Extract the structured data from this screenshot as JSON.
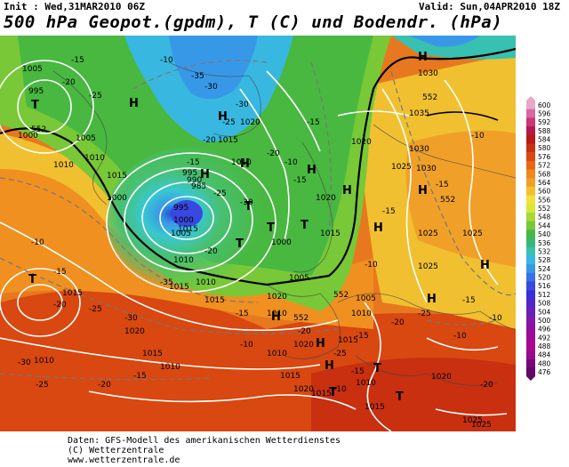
{
  "header": {
    "init": "Init : Wed,31MAR2010 06Z",
    "valid": "Valid: Sun,04APR2010 18Z",
    "title": "500 hPa Geopot.(gpdm), T (C) und Bodendr. (hPa)"
  },
  "footer": {
    "line1": "Daten: GFS-Modell des amerikanischen Wetterdienstes",
    "line2": "(C) Wetterzentrale",
    "line3": "www.wetterzentrale.de"
  },
  "legend": {
    "values": [
      "600",
      "596",
      "592",
      "588",
      "584",
      "580",
      "576",
      "572",
      "568",
      "564",
      "560",
      "556",
      "552",
      "548",
      "544",
      "540",
      "536",
      "532",
      "528",
      "524",
      "520",
      "516",
      "512",
      "508",
      "504",
      "500",
      "496",
      "492",
      "488",
      "484",
      "480",
      "476"
    ],
    "colors": [
      "#e8a8c8",
      "#d868a8",
      "#c83878",
      "#b81848",
      "#b81818",
      "#c83010",
      "#d84810",
      "#e86818",
      "#f08820",
      "#f0a028",
      "#f0c030",
      "#f0e040",
      "#d8e838",
      "#a8d838",
      "#78c838",
      "#48b840",
      "#38b878",
      "#38c0b0",
      "#38b8e0",
      "#3898e8",
      "#3870e8",
      "#3848e0",
      "#3830d8",
      "#5028c8",
      "#6820b8",
      "#8018a8",
      "#9010a0",
      "#a00898",
      "#a80890",
      "#980888",
      "#780878",
      "#600868"
    ]
  },
  "map_labels": {
    "pressure": [
      "1005",
      "995",
      "1000",
      "1005",
      "1010",
      "1015",
      "1010",
      "1000",
      "995",
      "990",
      "985",
      "995",
      "1000",
      "1005",
      "1010",
      "1015",
      "1005",
      "1010",
      "1000",
      "1015",
      "1020",
      "1025",
      "1030",
      "1035",
      "1030",
      "1025",
      "1025",
      "1020",
      "1015",
      "1010",
      "1005",
      "1010",
      "1015",
      "1020",
      "1015",
      "1010",
      "1010",
      "1015",
      "1020",
      "1015",
      "1010",
      "1015",
      "1020",
      "1025",
      "1025",
      "1020",
      "1015",
      "1010",
      "1015",
      "1020",
      "1015",
      "1010",
      "1020",
      "1025",
      "1030"
    ],
    "temps": [
      "-15",
      "-20",
      "-25",
      "-30",
      "-35",
      "-30",
      "-25",
      "-20",
      "-15",
      "-10",
      "-10",
      "-15",
      "-20",
      "-25",
      "-30",
      "-35",
      "-30",
      "-25",
      "-20",
      "-15",
      "-10",
      "-15",
      "-20",
      "-25",
      "-30",
      "-20",
      "-25",
      "-15",
      "-10",
      "-15",
      "-20",
      "-25",
      "-15",
      "-10",
      "-15",
      "-20",
      "-15",
      "-10",
      "-10",
      "-15",
      "-10",
      "-10",
      "-15",
      "-20",
      "-15"
    ],
    "geopot": [
      "552",
      "552",
      "552",
      "552",
      "552"
    ],
    "symbols": [
      "T",
      "H",
      "H",
      "T",
      "H",
      "H",
      "T",
      "H",
      "T",
      "H",
      "T",
      "H",
      "H",
      "H",
      "H",
      "T",
      "H",
      "H",
      "T",
      "T",
      "H",
      "H",
      "T"
    ]
  }
}
